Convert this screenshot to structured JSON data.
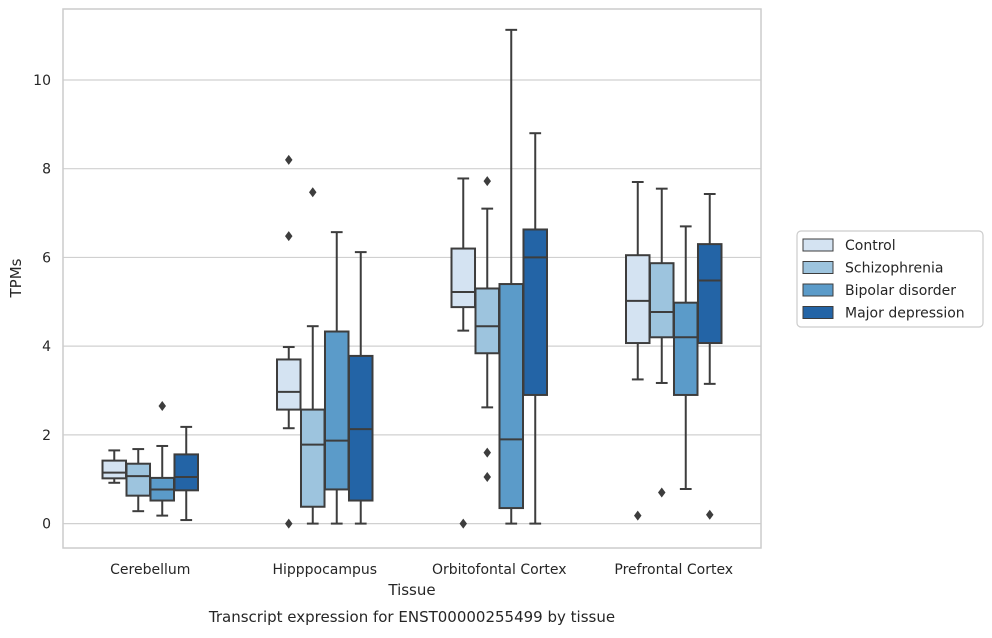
{
  "chart_data": {
    "type": "box",
    "caption": "Transcript expression for ENST00000255499 by tissue",
    "xlabel": "Tissue",
    "ylabel": "TPMs",
    "ylim": [
      -0.55,
      11.6
    ],
    "yticks": [
      0,
      2,
      4,
      6,
      8,
      10
    ],
    "grid": "horizontal",
    "legend_placement": "right-center",
    "categories": [
      "Cerebellum",
      "Hipppocampus",
      "Orbitofontal Cortex",
      "Prefrontal Cortex"
    ],
    "series": [
      {
        "name": "Control",
        "color": "#d4e3f2",
        "boxes": [
          {
            "whislo": 0.92,
            "q1": 1.02,
            "med": 1.15,
            "q3": 1.42,
            "whishi": 1.65,
            "fliers": []
          },
          {
            "whislo": 2.15,
            "q1": 2.57,
            "med": 2.97,
            "q3": 3.7,
            "whishi": 3.98,
            "fliers": [
              0.0,
              6.48,
              8.2
            ]
          },
          {
            "whislo": 4.35,
            "q1": 4.88,
            "med": 5.22,
            "q3": 6.2,
            "whishi": 7.78,
            "fliers": [
              0.0
            ]
          },
          {
            "whislo": 3.25,
            "q1": 4.07,
            "med": 5.02,
            "q3": 6.05,
            "whishi": 7.7,
            "fliers": [
              0.18
            ]
          }
        ]
      },
      {
        "name": "Schizophrenia",
        "color": "#9dc4de",
        "boxes": [
          {
            "whislo": 0.28,
            "q1": 0.63,
            "med": 1.07,
            "q3": 1.35,
            "whishi": 1.68,
            "fliers": []
          },
          {
            "whislo": 0.0,
            "q1": 0.38,
            "med": 1.78,
            "q3": 2.57,
            "whishi": 4.45,
            "fliers": [
              7.47
            ]
          },
          {
            "whislo": 2.62,
            "q1": 3.84,
            "med": 4.45,
            "q3": 5.3,
            "whishi": 7.1,
            "fliers": [
              1.05,
              1.6,
              7.72
            ]
          },
          {
            "whislo": 3.17,
            "q1": 4.2,
            "med": 4.77,
            "q3": 5.87,
            "whishi": 7.55,
            "fliers": [
              0.7
            ]
          }
        ]
      },
      {
        "name": "Bipolar disorder",
        "color": "#5b9bc9",
        "boxes": [
          {
            "whislo": 0.18,
            "q1": 0.52,
            "med": 0.77,
            "q3": 1.03,
            "whishi": 1.75,
            "fliers": [
              2.65
            ]
          },
          {
            "whislo": 0.0,
            "q1": 0.77,
            "med": 1.87,
            "q3": 4.33,
            "whishi": 6.57,
            "fliers": []
          },
          {
            "whislo": 0.0,
            "q1": 0.35,
            "med": 1.9,
            "q3": 5.4,
            "whishi": 11.13,
            "fliers": []
          },
          {
            "whislo": 0.78,
            "q1": 2.9,
            "med": 4.2,
            "q3": 4.98,
            "whishi": 6.7,
            "fliers": []
          }
        ]
      },
      {
        "name": "Major depression",
        "color": "#2364a6",
        "boxes": [
          {
            "whislo": 0.08,
            "q1": 0.75,
            "med": 1.05,
            "q3": 1.56,
            "whishi": 2.18,
            "fliers": []
          },
          {
            "whislo": 0.0,
            "q1": 0.52,
            "med": 2.13,
            "q3": 3.78,
            "whishi": 6.12,
            "fliers": []
          },
          {
            "whislo": 0.0,
            "q1": 2.9,
            "med": 6.0,
            "q3": 6.63,
            "whishi": 8.8,
            "fliers": []
          },
          {
            "whislo": 3.15,
            "q1": 4.07,
            "med": 5.48,
            "q3": 6.3,
            "whishi": 7.43,
            "fliers": [
              0.2
            ]
          }
        ]
      }
    ]
  }
}
